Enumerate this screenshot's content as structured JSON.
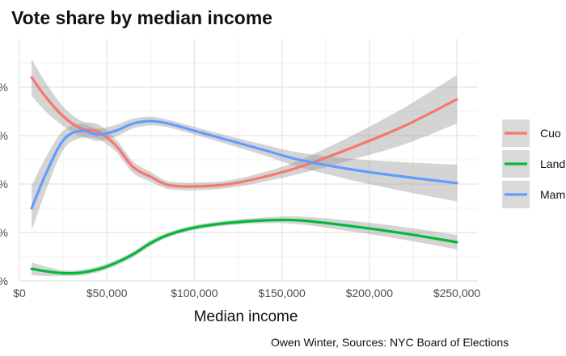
{
  "chart_data": {
    "type": "line",
    "title": "Vote share by median income",
    "xlabel": "Median income",
    "ylabel": "",
    "caption": "Owen Winter, Sources: NYC Board of Elections",
    "xlim": [
      0,
      262000
    ],
    "ylim": [
      0.1,
      0.6
    ],
    "x_ticks": [
      {
        "value": 0,
        "label": "$0"
      },
      {
        "value": 50000,
        "label": "$50,000"
      },
      {
        "value": 100000,
        "label": "$100,000"
      },
      {
        "value": 150000,
        "label": "$150,000"
      },
      {
        "value": 200000,
        "label": "$200,000"
      },
      {
        "value": 250000,
        "label": "$250,000"
      }
    ],
    "y_ticks": [
      {
        "value": 0.1,
        "label": "%"
      },
      {
        "value": 0.2,
        "label": "%"
      },
      {
        "value": 0.3,
        "label": "%"
      },
      {
        "value": 0.4,
        "label": "%"
      },
      {
        "value": 0.5,
        "label": "%"
      }
    ],
    "grid": true,
    "legend_position": "right",
    "series": [
      {
        "name": "Cuo",
        "color": "#F8766D",
        "x": [
          7000,
          15000,
          25000,
          35000,
          45000,
          55000,
          65000,
          75000,
          85000,
          100000,
          120000,
          140000,
          160000,
          190000,
          220000,
          250000
        ],
        "y": [
          0.52,
          0.48,
          0.44,
          0.415,
          0.408,
          0.38,
          0.335,
          0.315,
          0.298,
          0.295,
          0.3,
          0.315,
          0.335,
          0.375,
          0.42,
          0.475
        ],
        "ci_half": [
          0.038,
          0.03,
          0.02,
          0.016,
          0.015,
          0.013,
          0.012,
          0.01,
          0.008,
          0.008,
          0.008,
          0.01,
          0.014,
          0.025,
          0.038,
          0.05
        ]
      },
      {
        "name": "Land",
        "color": "#00BA38",
        "x": [
          7000,
          15000,
          25000,
          35000,
          45000,
          55000,
          65000,
          75000,
          85000,
          100000,
          120000,
          140000,
          160000,
          190000,
          220000,
          250000
        ],
        "y": [
          0.125,
          0.12,
          0.116,
          0.117,
          0.124,
          0.137,
          0.155,
          0.178,
          0.195,
          0.21,
          0.22,
          0.225,
          0.225,
          0.213,
          0.198,
          0.18
        ],
        "ci_half": [
          0.013,
          0.01,
          0.006,
          0.006,
          0.006,
          0.006,
          0.006,
          0.006,
          0.005,
          0.005,
          0.005,
          0.006,
          0.008,
          0.011,
          0.013,
          0.015
        ]
      },
      {
        "name": "Mam",
        "color": "#619CFF",
        "x": [
          7000,
          15000,
          25000,
          35000,
          45000,
          55000,
          65000,
          75000,
          85000,
          100000,
          120000,
          140000,
          160000,
          190000,
          220000,
          250000
        ],
        "y": [
          0.25,
          0.32,
          0.39,
          0.41,
          0.402,
          0.41,
          0.425,
          0.43,
          0.425,
          0.41,
          0.39,
          0.37,
          0.35,
          0.33,
          0.315,
          0.302
        ],
        "ci_half": [
          0.046,
          0.035,
          0.02,
          0.015,
          0.013,
          0.012,
          0.01,
          0.009,
          0.008,
          0.008,
          0.009,
          0.011,
          0.015,
          0.022,
          0.03,
          0.038
        ]
      }
    ]
  }
}
